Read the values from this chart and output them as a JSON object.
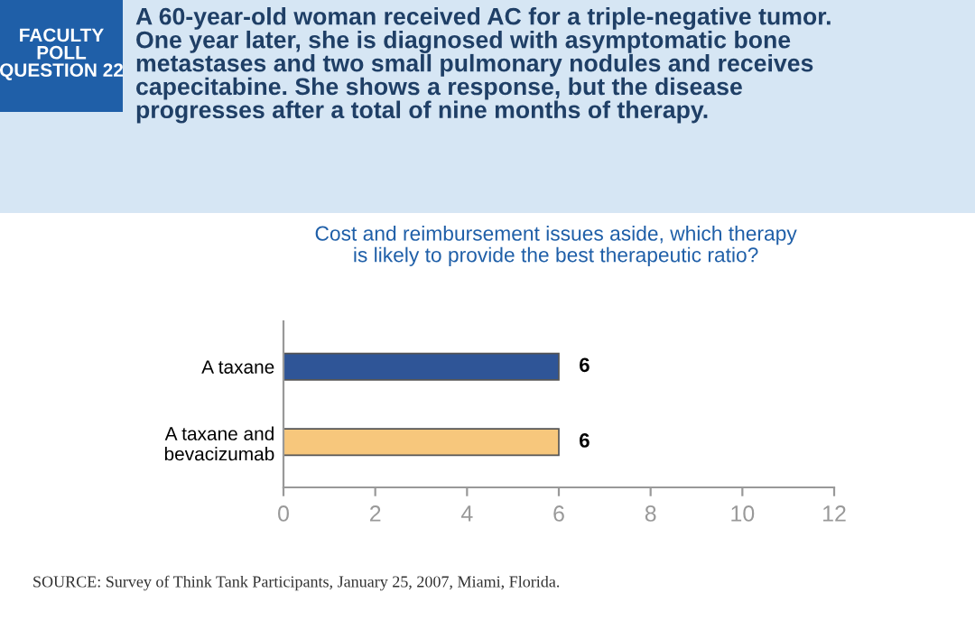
{
  "chart_data": {
    "type": "bar",
    "orientation": "horizontal",
    "title": "A 60-year-old woman received AC for a triple-negative tumor.\nOne year later, she is diagnosed with asymptomatic bone\nmetastases and two small pulmonary nodules and receives\ncapecitabine. She shows a response, but the disease\nprogresses after a total of nine months of therapy.",
    "subtitle": "Cost and reimbursement issues aside, which therapy\nis likely to provide the best therapeutic ratio?",
    "categories": [
      "A taxane",
      "A taxane and\nbevacizumab"
    ],
    "values": [
      6,
      6
    ],
    "colors": [
      "#2f5597",
      "#f7c77c"
    ],
    "xlim": [
      0,
      12
    ],
    "xticks": [
      0,
      2,
      4,
      6,
      8,
      10,
      12
    ],
    "data_labels": true,
    "grid": false,
    "legend": false,
    "annotations": [
      "FACULTY\nPOLL\nQUESTION 22",
      "SOURCE: Survey of Think Tank Participants, January 25, 2007, Miami, Florida."
    ]
  }
}
